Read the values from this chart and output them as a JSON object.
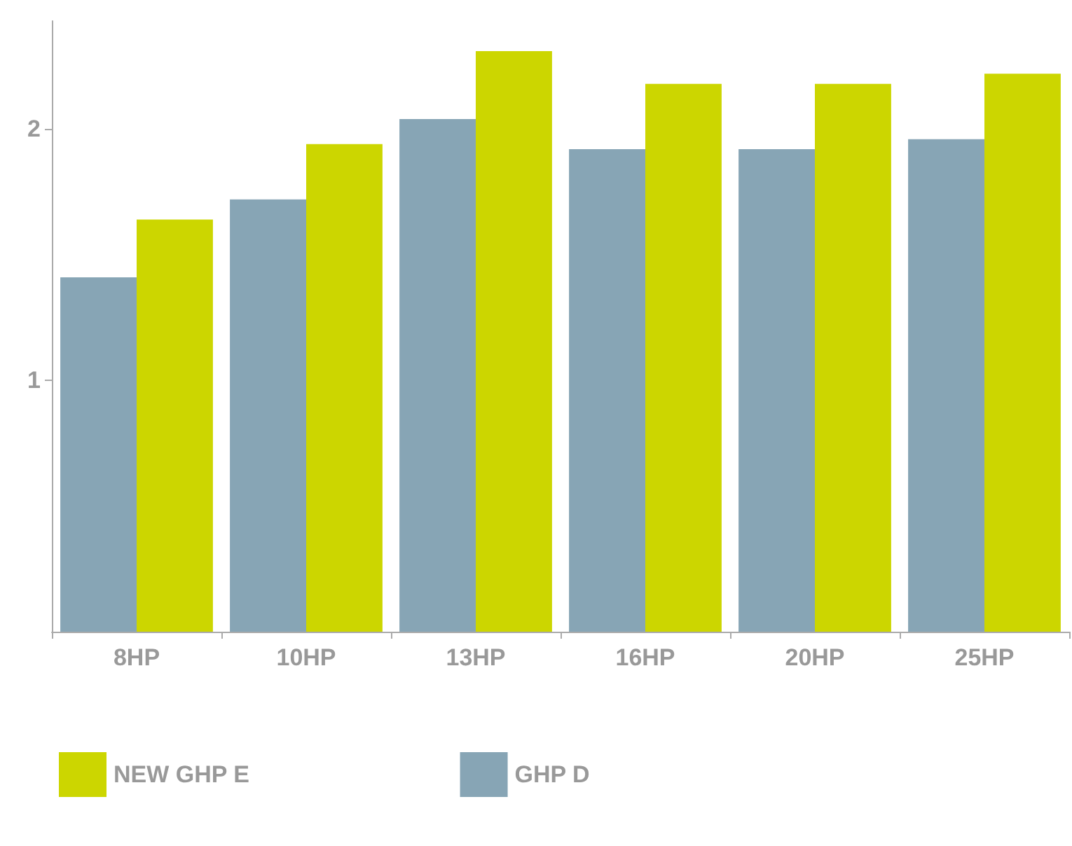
{
  "chart_data": {
    "type": "bar",
    "categories": [
      "8HP",
      "10HP",
      "13HP",
      "16HP",
      "20HP",
      "25HP"
    ],
    "series": [
      {
        "name": "GHP D",
        "color": "#87a5b5",
        "values": [
          1.41,
          1.72,
          2.04,
          1.92,
          1.92,
          1.96
        ]
      },
      {
        "name": "NEW GHP E",
        "color": "#ccd600",
        "values": [
          1.64,
          1.94,
          2.31,
          2.18,
          2.18,
          2.22
        ]
      }
    ],
    "ylim": [
      0,
      2.43
    ],
    "yticks": [
      1,
      2
    ],
    "grid": false,
    "legend": "bottom left"
  }
}
